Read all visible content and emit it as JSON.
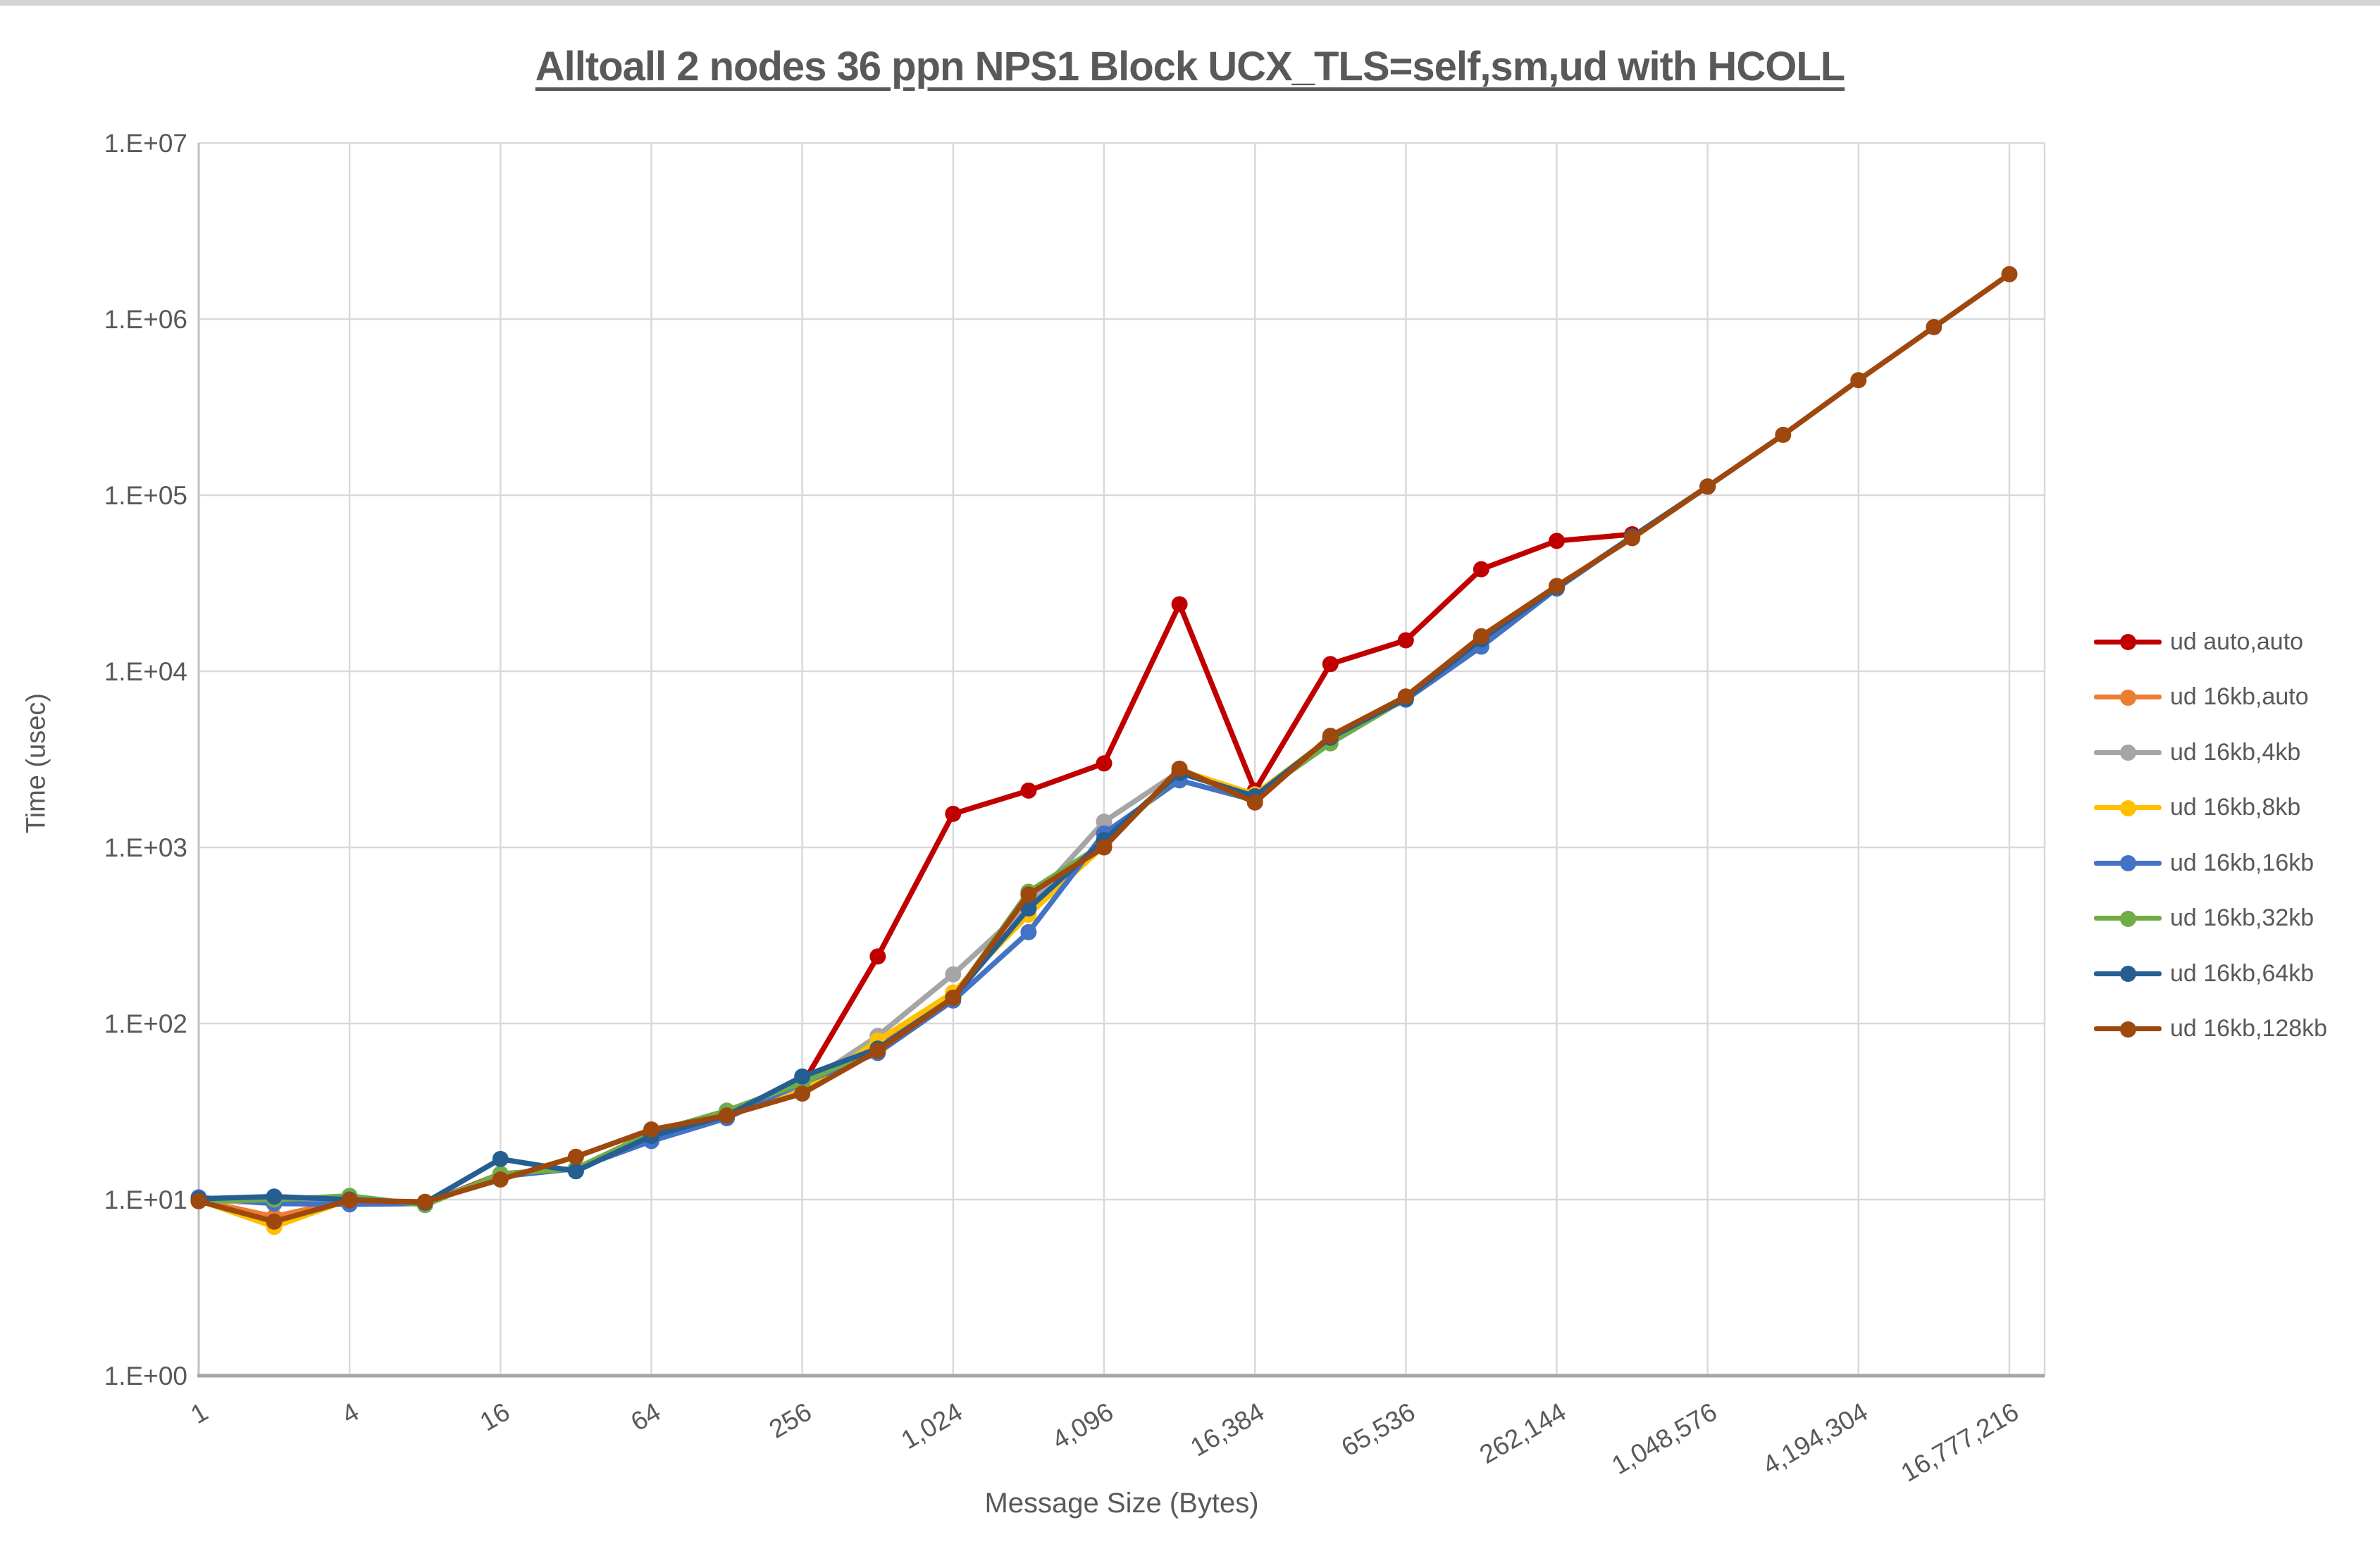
{
  "window": {
    "top_strip": true
  },
  "colors": {
    "background": "#FFFFFF",
    "text": "#595959",
    "grid": "#D9D9D9",
    "axis_line": "#A6A6A6",
    "left_axis_line": "#BFBFBF"
  },
  "chart_data": {
    "type": "line",
    "title": "Alltoall 2 nodes 36 ppn NPS1 Block UCX_TLS=self,sm,ud with HCOLL",
    "xlabel": "Message Size (Bytes)",
    "ylabel": "Time (usec)",
    "x_scale": "log2",
    "y_scale": "log10",
    "xlim": [
      1,
      16777216
    ],
    "ylim": [
      1,
      10000000
    ],
    "grid": true,
    "legend_position": "right",
    "x_ticks": [
      {
        "label": "1",
        "value": 1
      },
      {
        "label": "4",
        "value": 4
      },
      {
        "label": "16",
        "value": 16
      },
      {
        "label": "64",
        "value": 64
      },
      {
        "label": "256",
        "value": 256
      },
      {
        "label": "1,024",
        "value": 1024
      },
      {
        "label": "4,096",
        "value": 4096
      },
      {
        "label": "16,384",
        "value": 16384
      },
      {
        "label": "65,536",
        "value": 65536
      },
      {
        "label": "262,144",
        "value": 262144
      },
      {
        "label": "1,048,576",
        "value": 1048576
      },
      {
        "label": "4,194,304",
        "value": 4194304
      },
      {
        "label": "16,777,216",
        "value": 16777216
      }
    ],
    "y_ticks": [
      {
        "label": "1.E+00",
        "value": 1
      },
      {
        "label": "1.E+01",
        "value": 10
      },
      {
        "label": "1.E+02",
        "value": 100
      },
      {
        "label": "1.E+03",
        "value": 1000
      },
      {
        "label": "1.E+04",
        "value": 10000
      },
      {
        "label": "1.E+05",
        "value": 100000
      },
      {
        "label": "1.E+06",
        "value": 1000000
      },
      {
        "label": "1.E+07",
        "value": 10000000
      }
    ],
    "series": [
      {
        "name": "ud auto,auto",
        "color": "#C00000",
        "x": [
          1,
          2,
          4,
          8,
          16,
          32,
          64,
          128,
          256,
          512,
          1024,
          2048,
          4096,
          8192,
          16384,
          32768,
          65536,
          131072,
          262144,
          524288
        ],
        "y": [
          10,
          10,
          10,
          9.5,
          14,
          15,
          24,
          30,
          45,
          240,
          1550,
          2100,
          3000,
          24000,
          2100,
          11000,
          15000,
          38000,
          55000,
          60000
        ]
      },
      {
        "name": "ud 16kb,auto",
        "color": "#ED7D31",
        "x": [
          1,
          2,
          4,
          8,
          16,
          32,
          64,
          128,
          256,
          512,
          1024,
          2048,
          4096,
          8192,
          16384,
          32768,
          65536,
          131072,
          262144,
          524288,
          1048576
        ],
        "y": [
          9.9,
          8,
          10,
          9.5,
          13.8,
          15,
          24,
          30,
          42,
          75,
          145,
          450,
          1050,
          2700,
          1950,
          4200,
          7000,
          15200,
          30000,
          58000,
          112000
        ]
      },
      {
        "name": "ud 16kb,4kb",
        "color": "#A5A5A5",
        "x": [
          1,
          2,
          4,
          8,
          16,
          32,
          64,
          128,
          256,
          512,
          1024,
          2048,
          4096,
          8192,
          16384,
          32768,
          65536,
          131072,
          262144,
          524288,
          1048576
        ],
        "y": [
          10,
          9.5,
          10,
          9.5,
          13.8,
          15,
          24,
          30,
          44,
          85,
          190,
          470,
          1400,
          2700,
          1950,
          4200,
          7000,
          15500,
          30000,
          58000,
          112000
        ]
      },
      {
        "name": "ud 16kb,8kb",
        "color": "#FFC000",
        "x": [
          1,
          2,
          4,
          8,
          16,
          32,
          64,
          128,
          256,
          512,
          1024,
          2048,
          4096,
          8192,
          16384,
          32768,
          65536,
          131072,
          262144,
          524288,
          1048576
        ],
        "y": [
          9.9,
          7,
          10,
          9.5,
          13.5,
          15,
          24,
          30,
          41,
          80,
          150,
          415,
          1020,
          2750,
          2000,
          4200,
          7000,
          15300,
          30000,
          58000,
          112000
        ]
      },
      {
        "name": "ud 16kb,16kb",
        "color": "#4472C4",
        "x": [
          1,
          2,
          4,
          8,
          16,
          32,
          64,
          128,
          256,
          512,
          1024,
          2048,
          4096,
          8192,
          16384,
          32768,
          65536,
          131072,
          262144,
          524288,
          1048576
        ],
        "y": [
          10.3,
          9.5,
          9.4,
          9.5,
          13.5,
          15,
          21.5,
          29,
          46,
          68,
          135,
          330,
          1200,
          2400,
          1850,
          4200,
          6900,
          13800,
          29500,
          58000,
          112000
        ]
      },
      {
        "name": "ud 16kb,32kb",
        "color": "#70AD47",
        "x": [
          1,
          2,
          4,
          8,
          16,
          32,
          64,
          128,
          256,
          512,
          1024,
          2048,
          4096,
          8192,
          16384,
          32768,
          65536,
          131072,
          262144,
          524288,
          1048576
        ],
        "y": [
          9.8,
          10,
          10.5,
          9.3,
          14,
          15,
          24,
          32,
          46,
          72,
          140,
          560,
          1050,
          2650,
          1950,
          3900,
          7000,
          15200,
          30000,
          58000,
          112000
        ]
      },
      {
        "name": "ud 16kb,64kb",
        "color": "#255E91",
        "x": [
          1,
          2,
          4,
          8,
          16,
          32,
          64,
          128,
          256,
          512,
          1024,
          2048,
          4096,
          8192,
          16384,
          32768,
          65536,
          131072,
          262144,
          524288,
          1048576
        ],
        "y": [
          10.1,
          10.4,
          10,
          9.6,
          17,
          14.5,
          23,
          30,
          50,
          72,
          140,
          450,
          1100,
          2650,
          1950,
          4200,
          7000,
          15200,
          30000,
          58000,
          112000
        ]
      },
      {
        "name": "ud 16kb,128kb",
        "color": "#9E480E",
        "x": [
          1,
          2,
          4,
          8,
          16,
          32,
          64,
          128,
          256,
          512,
          1024,
          2048,
          4096,
          8192,
          16384,
          32768,
          65536,
          131072,
          262144,
          524288,
          1048576,
          2097152,
          4194304,
          8388608,
          16777216
        ],
        "y": [
          9.8,
          7.5,
          9.9,
          9.7,
          13,
          17.5,
          25,
          30,
          40,
          70,
          140,
          540,
          1000,
          2800,
          1800,
          4300,
          7200,
          15800,
          30500,
          57000,
          112000,
          220000,
          450000,
          900000,
          1800000
        ]
      }
    ]
  }
}
